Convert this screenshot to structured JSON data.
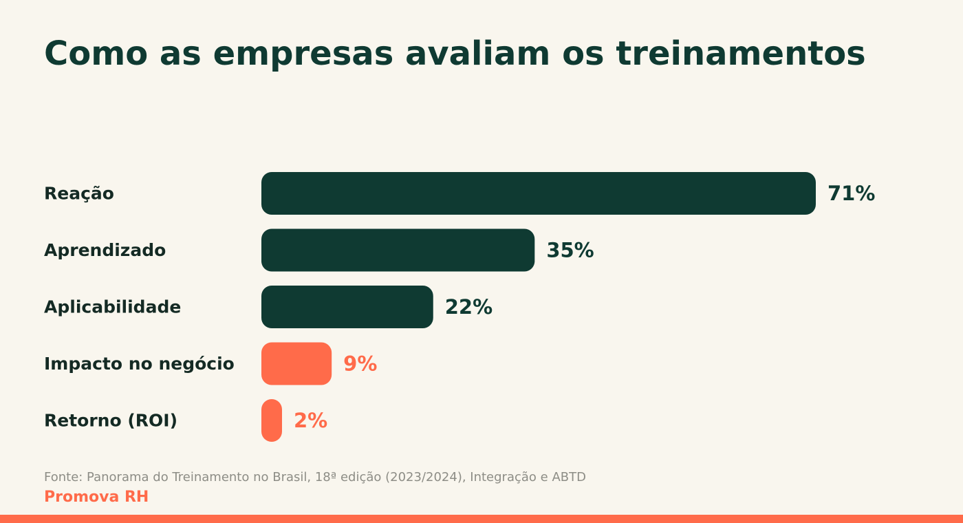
{
  "colors": {
    "background": "#f9f6ee",
    "primary": "#0f3a32",
    "accent": "#ff6b4a",
    "label": "#142a24",
    "source": "#8d8d86"
  },
  "chart_data": {
    "type": "bar",
    "orientation": "horizontal",
    "title": "Como as empresas avaliam os treinamentos",
    "categories": [
      "Reação",
      "Aprendizado",
      "Aplicabilidade",
      "Impacto no negócio",
      "Retorno (ROI)"
    ],
    "values": [
      71,
      35,
      22,
      9,
      2
    ],
    "value_labels": [
      "71%",
      "35%",
      "22%",
      "9%",
      "2%"
    ],
    "bar_colors": [
      "#0f3a32",
      "#0f3a32",
      "#0f3a32",
      "#ff6b4a",
      "#ff6b4a"
    ],
    "unit": "%",
    "xlim": [
      0,
      100
    ],
    "grid": false,
    "legend": "none"
  },
  "footer": {
    "source": "Fonte: Panorama do Treinamento no Brasil, 18ª edição (2023/2024), Integração e ABTD",
    "brand": "Promova RH"
  }
}
